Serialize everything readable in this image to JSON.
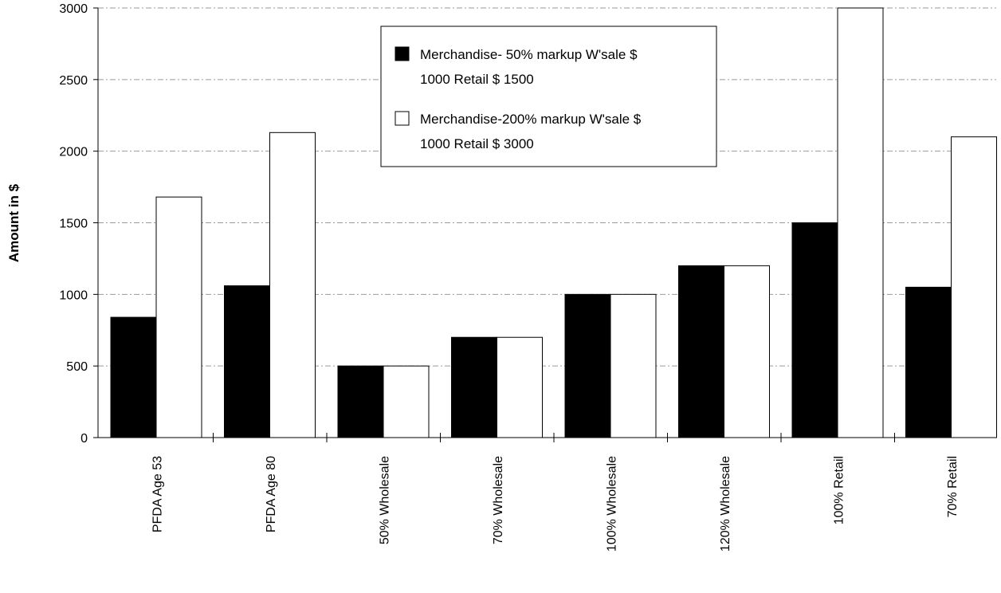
{
  "chart_data": {
    "type": "bar",
    "categories": [
      "PFDA Age 53",
      "PFDA Age 80",
      "50% Wholesale",
      "70% Wholesale",
      "100% Wholesale",
      "120% Wholesale",
      "100% Retail",
      "70% Retail"
    ],
    "series": [
      {
        "name_lines": [
          "Merchandise- 50%  markup W'sale $",
          "1000  Retail  $  1500"
        ],
        "color": "#000000",
        "values": [
          840,
          1060,
          500,
          700,
          1000,
          1200,
          1500,
          1050
        ]
      },
      {
        "name_lines": [
          "Merchandise-200%  markup W'sale $",
          "1000  Retail  $  3000"
        ],
        "color": "#ffffff",
        "values": [
          1680,
          2130,
          500,
          700,
          1000,
          1200,
          3000,
          2100
        ]
      }
    ],
    "ylabel": "Amount in $",
    "ylim": [
      0,
      3000
    ],
    "yticks": [
      0,
      500,
      1000,
      1500,
      2000,
      2500,
      3000
    ],
    "grid": true,
    "legend_position": "top-center"
  }
}
